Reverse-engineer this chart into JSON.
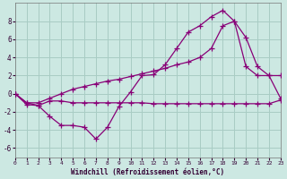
{
  "xlabel": "Windchill (Refroidissement éolien,°C)",
  "bg_color": "#cce8e2",
  "grid_color": "#a8ccc4",
  "line_color": "#880077",
  "xlim": [
    0,
    23
  ],
  "ylim": [
    -7,
    10
  ],
  "yticks": [
    -6,
    -4,
    -2,
    0,
    2,
    4,
    6,
    8
  ],
  "xticks": [
    0,
    1,
    2,
    3,
    4,
    5,
    6,
    7,
    8,
    9,
    10,
    11,
    12,
    13,
    14,
    15,
    16,
    17,
    18,
    19,
    20,
    21,
    22,
    23
  ],
  "line1_x": [
    0,
    1,
    2,
    3,
    4,
    5,
    6,
    7,
    8,
    9,
    10,
    11,
    12,
    13,
    14,
    15,
    16,
    17,
    18,
    19,
    20,
    21,
    22,
    23
  ],
  "line1_y": [
    0.0,
    -1.2,
    -1.3,
    -0.8,
    -0.8,
    -1.0,
    -1.0,
    -1.0,
    -1.0,
    -1.0,
    -1.0,
    -1.0,
    -1.1,
    -1.1,
    -1.1,
    -1.1,
    -1.1,
    -1.1,
    -1.1,
    -1.1,
    -1.1,
    -1.1,
    -1.1,
    -0.7
  ],
  "line2_x": [
    0,
    1,
    2,
    3,
    4,
    5,
    6,
    7,
    8,
    9,
    10,
    11,
    12,
    13,
    14,
    15,
    16,
    17,
    18,
    19,
    20,
    21,
    22,
    23
  ],
  "line2_y": [
    0.0,
    -1.0,
    -1.0,
    -0.5,
    0.0,
    0.5,
    0.8,
    1.1,
    1.4,
    1.6,
    1.9,
    2.2,
    2.5,
    2.8,
    3.2,
    3.5,
    4.0,
    5.0,
    7.5,
    8.0,
    6.2,
    3.0,
    2.0,
    2.0
  ],
  "line3_x": [
    0,
    1,
    2,
    3,
    4,
    5,
    6,
    7,
    8,
    9,
    10,
    11,
    12,
    13,
    14,
    15,
    16,
    17,
    18,
    19,
    20,
    21,
    22,
    23
  ],
  "line3_y": [
    0.0,
    -1.0,
    -1.3,
    -2.5,
    -3.5,
    -3.5,
    -3.7,
    -5.0,
    -3.7,
    -1.4,
    0.2,
    2.0,
    2.1,
    3.2,
    5.0,
    6.8,
    7.5,
    8.5,
    9.2,
    8.0,
    3.0,
    2.0,
    2.0,
    -0.5
  ]
}
